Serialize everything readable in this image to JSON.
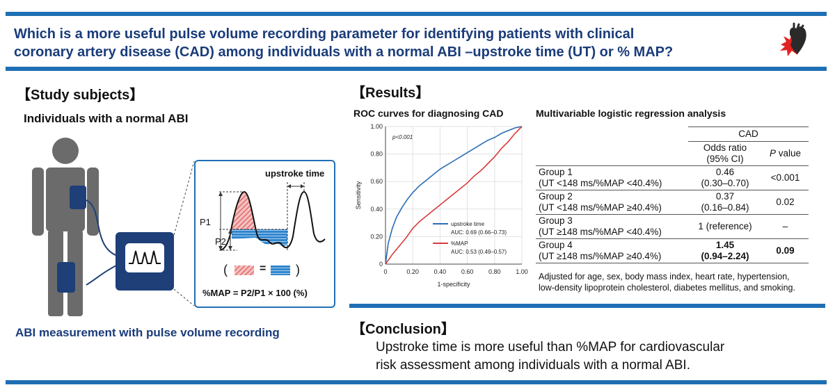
{
  "title": {
    "line1": "Which is a more useful pulse volume recording parameter for identifying patients with clinical",
    "line2": "coronary artery disease (CAD) among individuals with a normal ABI –upstroke time (UT) or % MAP?"
  },
  "study": {
    "heading": "【Study subjects】",
    "subheading": "Individuals with a normal ABI",
    "caption": "ABI measurement with pulse volume recording",
    "inset": {
      "upstroke_label": "upstroke time",
      "p1": "P1",
      "p2": "P2",
      "equal_sign": "=",
      "open_paren": "(",
      "close_paren": ")",
      "formula": "%MAP = P2/P1 × 100 (%)"
    }
  },
  "results": {
    "heading": "【Results】",
    "roc_title": "ROC curves for diagnosing CAD",
    "reg_title": "Multivariable logistic regression analysis"
  },
  "chart_data": {
    "type": "line",
    "title": "ROC curves for diagnosing CAD",
    "xlabel": "1-specificity",
    "ylabel": "Sensitivity",
    "xlim": [
      0,
      1
    ],
    "ylim": [
      0,
      1
    ],
    "x_ticks": [
      "0",
      "0.20",
      "0.40",
      "0.60",
      "0.80",
      "1.00"
    ],
    "y_ticks": [
      "0",
      "0.20",
      "0.40",
      "0.60",
      "0.80",
      "1.00"
    ],
    "grid": true,
    "annotation": "p<0.001",
    "legend_position": "bottom-right",
    "series": [
      {
        "name": "upstroke time",
        "auc": "AUC: 0.69 (0.66–0.73)",
        "color": "#2a6db5",
        "x": [
          0,
          0.02,
          0.05,
          0.08,
          0.12,
          0.16,
          0.2,
          0.25,
          0.3,
          0.35,
          0.4,
          0.45,
          0.5,
          0.55,
          0.6,
          0.65,
          0.7,
          0.75,
          0.8,
          0.85,
          0.9,
          0.95,
          1
        ],
        "y": [
          0,
          0.15,
          0.26,
          0.34,
          0.41,
          0.47,
          0.52,
          0.57,
          0.61,
          0.65,
          0.69,
          0.72,
          0.75,
          0.78,
          0.81,
          0.84,
          0.87,
          0.9,
          0.92,
          0.95,
          0.97,
          0.99,
          1
        ]
      },
      {
        "name": "%MAP",
        "auc": "AUC: 0.53 (0.49–0.57)",
        "color": "#d93a3a",
        "x": [
          0,
          0.05,
          0.1,
          0.15,
          0.2,
          0.25,
          0.3,
          0.35,
          0.4,
          0.45,
          0.5,
          0.55,
          0.6,
          0.65,
          0.7,
          0.75,
          0.8,
          0.85,
          0.9,
          0.95,
          1
        ],
        "y": [
          0,
          0.07,
          0.13,
          0.19,
          0.26,
          0.31,
          0.35,
          0.39,
          0.43,
          0.47,
          0.51,
          0.55,
          0.59,
          0.64,
          0.68,
          0.73,
          0.78,
          0.84,
          0.89,
          0.95,
          1
        ]
      }
    ]
  },
  "regression": {
    "outcome": "CAD",
    "col_or_line1": "Odds ratio",
    "col_or_line2": "(95% CI)",
    "col_p_italic": "P",
    "col_p_rest": " value",
    "rows": [
      {
        "name": "Group 1",
        "def": "(UT <148 ms/%MAP <40.4%)",
        "or": "0.46",
        "ci": "(0.30–0.70)",
        "p": "<0.001"
      },
      {
        "name": "Group 2",
        "def": "(UT <148 ms/%MAP ≥40.4%)",
        "or": "0.37",
        "ci": "(0.16–0.84)",
        "p": "0.02"
      },
      {
        "name": "Group 3",
        "def": "(UT ≥148 ms/%MAP <40.4%)",
        "or": "1 (reference)",
        "ci": "",
        "p": "–"
      },
      {
        "name": "Group 4",
        "def": "(UT ≥148 ms/%MAP ≥40.4%)",
        "or": "1.45",
        "ci": "(0.94–2.24)",
        "p": "0.09"
      }
    ],
    "note_line1": "Adjusted for age, sex, body mass index, heart rate, hypertension,",
    "note_line2": "low-density lipoprotein cholesterol, diabetes mellitus, and smoking."
  },
  "conclusion": {
    "heading": "【Conclusion】",
    "line1": "Upstroke time is more useful than %MAP for cardiovascular",
    "line2": "risk assessment among individuals with a normal ABI."
  },
  "colors": {
    "accent_blue": "#1f6fb4",
    "title_navy": "#1a3c7a",
    "device_navy": "#1e3f78",
    "figure_gray": "#6b6b6b",
    "hatch_red": "#e05a5a",
    "fill_blue": "#2f86cf"
  }
}
